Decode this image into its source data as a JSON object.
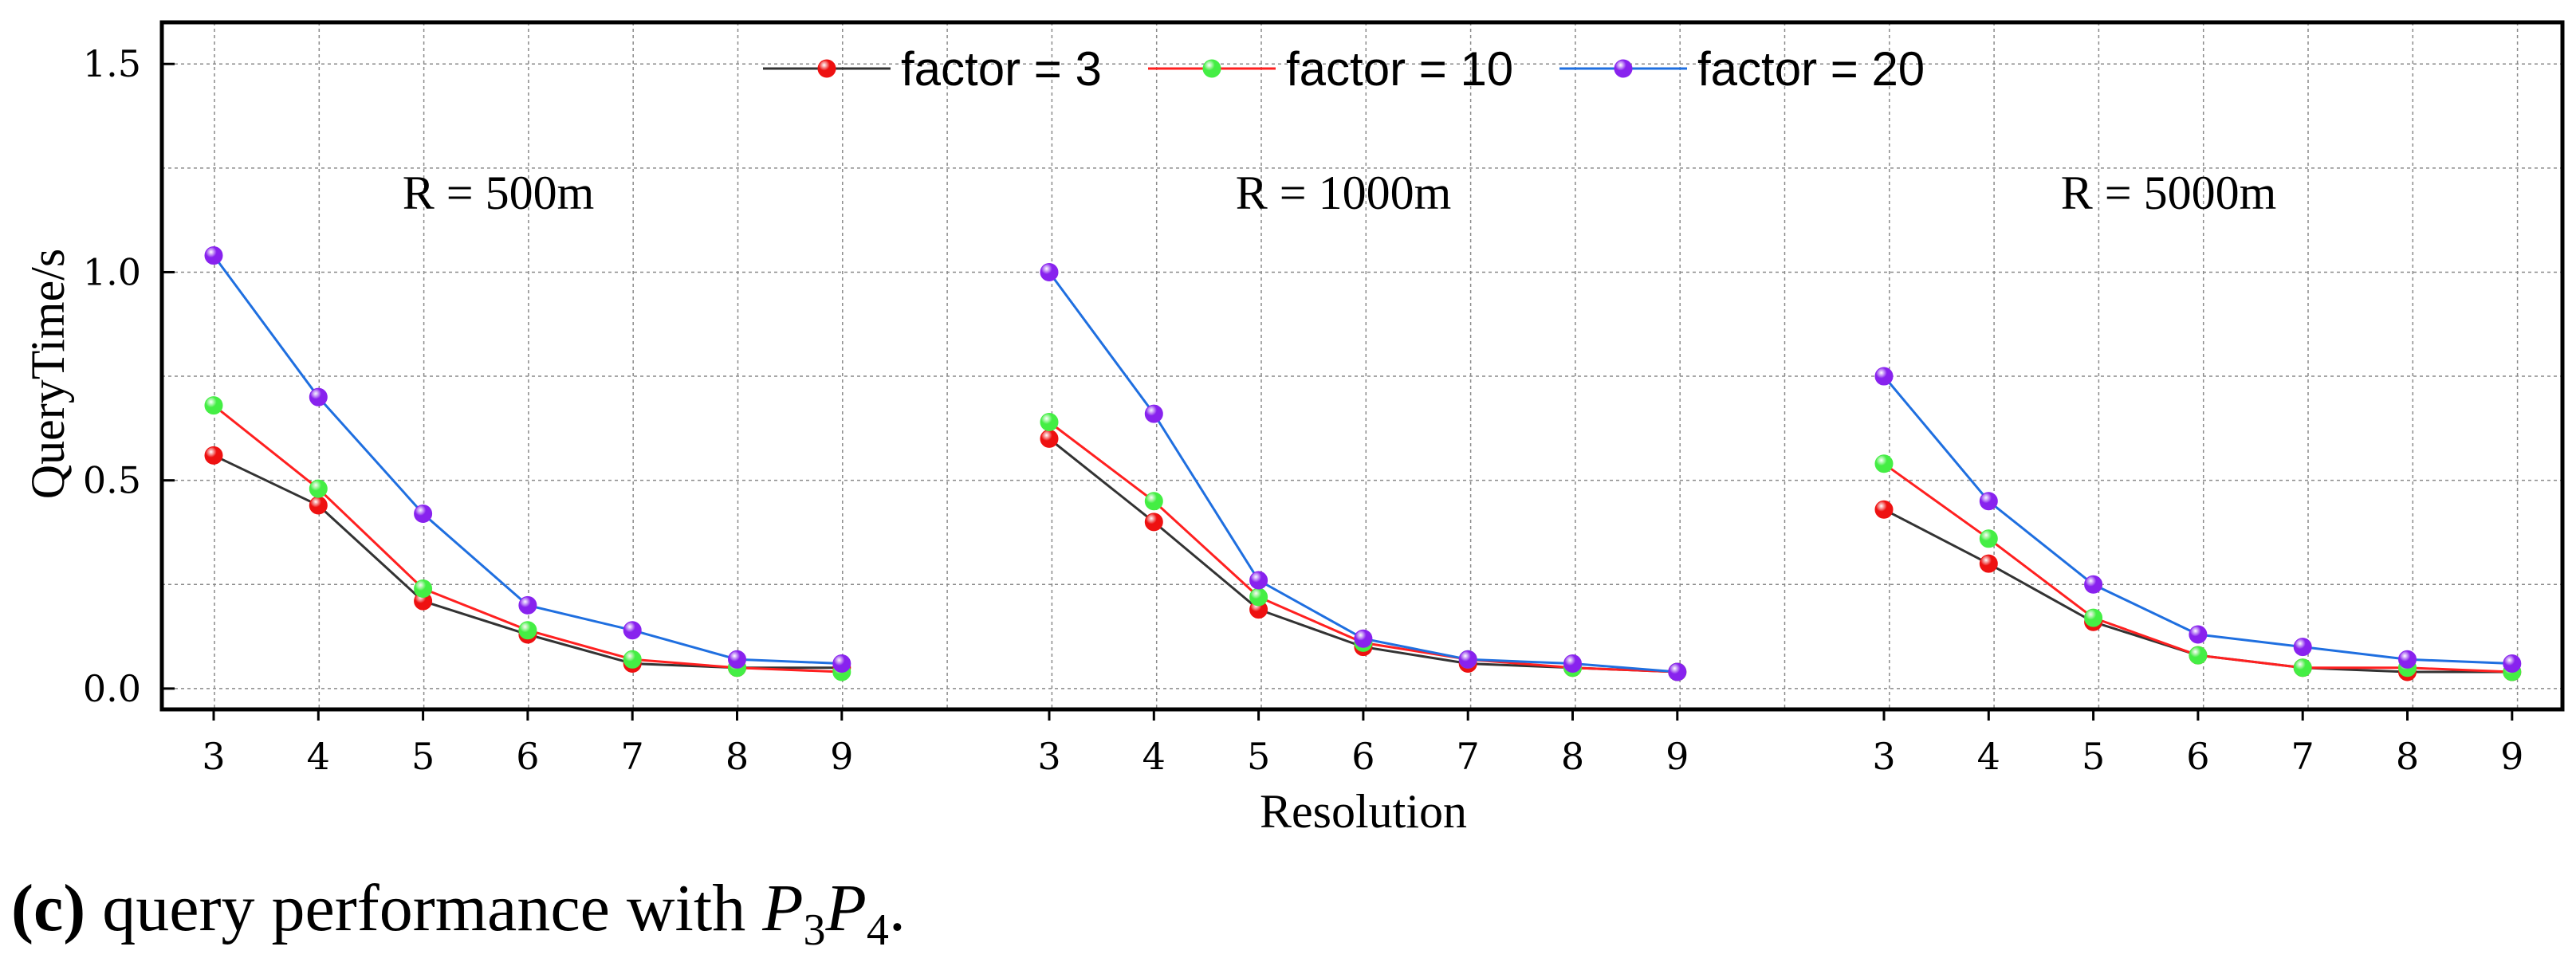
{
  "chart_data": {
    "type": "line",
    "xlabel": "Resolution",
    "ylabel": "QueryTime/s",
    "ylim": [
      -0.05,
      1.6
    ],
    "yticks": [
      "0.0",
      "0.5",
      "1.0",
      "1.5"
    ],
    "ytick_values": [
      0.0,
      0.5,
      1.0,
      1.5
    ],
    "grid": true,
    "legend_position": "top-center",
    "legend": [
      "factor = 3",
      "factor = 10",
      "factor = 20"
    ],
    "series_colors": {
      "lines": [
        "#333333",
        "#ff2020",
        "#1f6fe0"
      ],
      "markers": [
        "#ee1111",
        "#44ee44",
        "#8822ee"
      ]
    },
    "panels": [
      {
        "label": "R = 500m",
        "x": [
          3,
          4,
          5,
          6,
          7,
          8,
          9
        ],
        "x_tick_labels": [
          "3",
          "4",
          "5",
          "6",
          "7",
          "8",
          "9"
        ],
        "series": [
          {
            "name": "factor = 3",
            "values": [
              0.56,
              0.44,
              0.21,
              0.13,
              0.06,
              0.05,
              0.05
            ]
          },
          {
            "name": "factor = 10",
            "values": [
              0.68,
              0.48,
              0.24,
              0.14,
              0.07,
              0.05,
              0.04
            ]
          },
          {
            "name": "factor = 20",
            "values": [
              1.04,
              0.7,
              0.42,
              0.2,
              0.14,
              0.07,
              0.06
            ]
          }
        ]
      },
      {
        "label": "R = 1000m",
        "x": [
          3,
          4,
          5,
          6,
          7,
          8,
          9
        ],
        "x_tick_labels": [
          "3",
          "4",
          "5",
          "6",
          "7",
          "8",
          "9"
        ],
        "series": [
          {
            "name": "factor = 3",
            "values": [
              0.6,
              0.4,
              0.19,
              0.1,
              0.06,
              0.05,
              0.04
            ]
          },
          {
            "name": "factor = 10",
            "values": [
              0.64,
              0.45,
              0.22,
              0.11,
              0.07,
              0.05,
              0.04
            ]
          },
          {
            "name": "factor = 20",
            "values": [
              1.0,
              0.66,
              0.26,
              0.12,
              0.07,
              0.06,
              0.04
            ]
          }
        ]
      },
      {
        "label": "R = 5000m",
        "x": [
          3,
          4,
          5,
          6,
          7,
          8,
          9
        ],
        "x_tick_labels": [
          "3",
          "4",
          "5",
          "6",
          "7",
          "8",
          "9"
        ],
        "series": [
          {
            "name": "factor = 3",
            "values": [
              0.43,
              0.3,
              0.16,
              0.08,
              0.05,
              0.04,
              0.04
            ]
          },
          {
            "name": "factor = 10",
            "values": [
              0.54,
              0.36,
              0.17,
              0.08,
              0.05,
              0.05,
              0.04
            ]
          },
          {
            "name": "factor = 20",
            "values": [
              0.75,
              0.45,
              0.25,
              0.13,
              0.1,
              0.07,
              0.06
            ]
          }
        ]
      }
    ]
  },
  "caption": {
    "label": "(c)",
    "text": "query performance with",
    "formula_p1": "P",
    "formula_sub1": "3",
    "formula_p2": "P",
    "formula_sub2": "4",
    "end": "."
  }
}
